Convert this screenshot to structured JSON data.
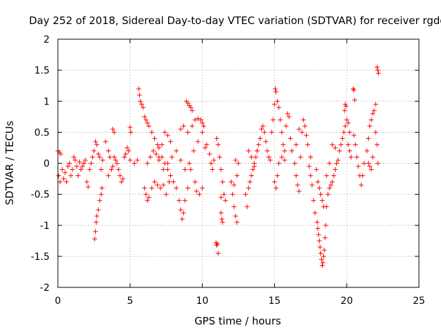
{
  "chart_data": {
    "type": "scatter",
    "title": "Day 252 of 2018, Sidereal Day-to-day VTEC variation (SDTVAR) for receiver rgdg",
    "xlabel": "GPS time / hours",
    "ylabel": "SDTVAR / TECUs",
    "xlim": [
      0,
      25
    ],
    "ylim": [
      -2,
      2
    ],
    "xticks": [
      0,
      5,
      10,
      15,
      20,
      25
    ],
    "yticks": [
      -2,
      -1.5,
      -1,
      -0.5,
      0,
      0.5,
      1,
      1.5,
      2
    ],
    "xtick_labels": [
      "0",
      "5",
      "10",
      "15",
      "20",
      "25"
    ],
    "ytick_labels": [
      "-2",
      "-1.5",
      "-1",
      "-0.5",
      "0",
      "0.5",
      "1",
      "1.5",
      "2"
    ],
    "grid": true,
    "marker": "+",
    "color": "#ff0000",
    "series": [
      {
        "name": "SDTVAR",
        "points": [
          [
            0.0,
            0.2
          ],
          [
            0.1,
            0.18
          ],
          [
            0.2,
            0.15
          ],
          [
            0.05,
            -0.2
          ],
          [
            0.15,
            -0.3
          ],
          [
            0.3,
            -0.1
          ],
          [
            0.4,
            -0.25
          ],
          [
            0.5,
            -0.15
          ],
          [
            0.6,
            -0.3
          ],
          [
            0.7,
            -0.05
          ],
          [
            0.8,
            0.0
          ],
          [
            0.9,
            -0.2
          ],
          [
            1.0,
            -0.1
          ],
          [
            1.1,
            0.1
          ],
          [
            1.2,
            0.05
          ],
          [
            1.3,
            -0.05
          ],
          [
            1.4,
            -0.2
          ],
          [
            1.5,
            0.02
          ],
          [
            1.6,
            -0.1
          ],
          [
            1.7,
            -0.05
          ],
          [
            1.8,
            0.0
          ],
          [
            1.9,
            0.05
          ],
          [
            2.0,
            -0.3
          ],
          [
            2.1,
            -0.38
          ],
          [
            2.2,
            -0.1
          ],
          [
            2.3,
            0.0
          ],
          [
            2.4,
            0.1
          ],
          [
            2.5,
            0.2
          ],
          [
            2.6,
            0.35
          ],
          [
            2.7,
            0.3
          ],
          [
            2.8,
            0.15
          ],
          [
            2.9,
            0.1
          ],
          [
            3.0,
            -0.1
          ],
          [
            3.1,
            0.05
          ],
          [
            2.55,
            -1.22
          ],
          [
            2.6,
            -1.1
          ],
          [
            2.65,
            -0.95
          ],
          [
            2.7,
            -0.85
          ],
          [
            2.8,
            -0.75
          ],
          [
            2.9,
            -0.6
          ],
          [
            3.0,
            -0.5
          ],
          [
            3.05,
            -0.4
          ],
          [
            3.3,
            0.35
          ],
          [
            3.5,
            0.2
          ],
          [
            3.6,
            0.1
          ],
          [
            3.7,
            -0.1
          ],
          [
            3.8,
            -0.05
          ],
          [
            3.9,
            0.1
          ],
          [
            4.0,
            0.05
          ],
          [
            4.1,
            0.0
          ],
          [
            4.2,
            -0.1
          ],
          [
            4.3,
            -0.2
          ],
          [
            4.4,
            -0.3
          ],
          [
            4.5,
            -0.25
          ],
          [
            4.6,
            0.1
          ],
          [
            4.7,
            0.15
          ],
          [
            4.8,
            0.25
          ],
          [
            4.9,
            0.2
          ],
          [
            5.0,
            0.05
          ],
          [
            3.8,
            0.55
          ],
          [
            3.9,
            0.5
          ],
          [
            5.0,
            0.58
          ],
          [
            5.05,
            0.5
          ],
          [
            3.5,
            -0.2
          ],
          [
            5.3,
            0.0
          ],
          [
            5.5,
            0.05
          ],
          [
            5.6,
            1.2
          ],
          [
            5.65,
            1.1
          ],
          [
            5.7,
            1.0
          ],
          [
            5.8,
            0.95
          ],
          [
            5.9,
            0.9
          ],
          [
            6.0,
            0.75
          ],
          [
            6.1,
            0.7
          ],
          [
            6.2,
            0.65
          ],
          [
            6.3,
            0.6
          ],
          [
            6.5,
            0.5
          ],
          [
            6.7,
            0.4
          ],
          [
            6.9,
            0.3
          ],
          [
            7.0,
            0.25
          ],
          [
            7.2,
            0.1
          ],
          [
            7.4,
            0.0
          ],
          [
            7.6,
            -0.1
          ],
          [
            7.8,
            -0.2
          ],
          [
            8.0,
            -0.3
          ],
          [
            8.2,
            -0.4
          ],
          [
            8.4,
            -0.6
          ],
          [
            8.5,
            -0.75
          ],
          [
            8.6,
            -0.9
          ],
          [
            8.7,
            -0.8
          ],
          [
            8.8,
            -0.6
          ],
          [
            9.0,
            -0.4
          ],
          [
            6.0,
            -0.4
          ],
          [
            6.1,
            -0.5
          ],
          [
            6.2,
            -0.6
          ],
          [
            6.3,
            -0.55
          ],
          [
            6.5,
            -0.4
          ],
          [
            6.7,
            -0.3
          ],
          [
            6.9,
            -0.35
          ],
          [
            7.1,
            -0.4
          ],
          [
            7.3,
            -0.35
          ],
          [
            7.5,
            -0.5
          ],
          [
            7.7,
            -0.3
          ],
          [
            6.2,
            0.0
          ],
          [
            6.4,
            0.1
          ],
          [
            6.6,
            0.2
          ],
          [
            6.8,
            0.15
          ],
          [
            7.0,
            0.05
          ],
          [
            7.2,
            0.3
          ],
          [
            7.4,
            0.5
          ],
          [
            7.6,
            0.45
          ],
          [
            7.8,
            0.35
          ],
          [
            7.0,
            0.1
          ],
          [
            7.3,
            -0.1
          ],
          [
            7.6,
            0.0
          ],
          [
            7.9,
            0.1
          ],
          [
            8.2,
            0.2
          ],
          [
            8.5,
            0.05
          ],
          [
            8.8,
            -0.1
          ],
          [
            9.1,
            0.0
          ],
          [
            9.4,
            0.2
          ],
          [
            9.7,
            0.35
          ],
          [
            10.0,
            0.5
          ],
          [
            8.9,
            1.0
          ],
          [
            9.0,
            0.97
          ],
          [
            9.1,
            0.93
          ],
          [
            9.2,
            0.9
          ],
          [
            9.3,
            0.85
          ],
          [
            8.5,
            0.55
          ],
          [
            8.7,
            0.6
          ],
          [
            9.0,
            0.5
          ],
          [
            9.3,
            0.6
          ],
          [
            9.5,
            0.7
          ],
          [
            9.7,
            0.72
          ],
          [
            9.9,
            0.7
          ],
          [
            10.0,
            0.65
          ],
          [
            10.1,
            0.6
          ],
          [
            9.5,
            -0.3
          ],
          [
            9.6,
            -0.45
          ],
          [
            9.8,
            -0.5
          ],
          [
            10.0,
            -0.4
          ],
          [
            9.2,
            -0.1
          ],
          [
            10.2,
            0.25
          ],
          [
            10.3,
            0.3
          ],
          [
            10.5,
            0.15
          ],
          [
            10.6,
            0.0
          ],
          [
            10.7,
            -0.1
          ],
          [
            10.8,
            0.05
          ],
          [
            11.0,
            0.4
          ],
          [
            11.1,
            0.3
          ],
          [
            11.2,
            0.1
          ],
          [
            11.3,
            -0.1
          ],
          [
            11.4,
            -0.3
          ],
          [
            11.5,
            -0.5
          ],
          [
            11.6,
            -0.6
          ],
          [
            10.95,
            -1.28
          ],
          [
            11.0,
            -1.32
          ],
          [
            11.05,
            -1.3
          ],
          [
            11.1,
            -1.45
          ],
          [
            11.3,
            -0.8
          ],
          [
            11.35,
            -0.9
          ],
          [
            11.4,
            -0.95
          ],
          [
            11.3,
            -0.55
          ],
          [
            12.0,
            -0.3
          ],
          [
            12.1,
            -0.5
          ],
          [
            12.2,
            -0.7
          ],
          [
            12.3,
            -0.85
          ],
          [
            12.4,
            -0.95
          ],
          [
            12.2,
            -0.35
          ],
          [
            12.4,
            -0.2
          ],
          [
            12.5,
            0.0
          ],
          [
            12.3,
            0.05
          ],
          [
            13.0,
            -0.5
          ],
          [
            13.1,
            -0.7
          ],
          [
            13.2,
            -0.4
          ],
          [
            13.3,
            -0.3
          ],
          [
            13.4,
            -0.2
          ],
          [
            13.5,
            -0.1
          ],
          [
            13.6,
            0.0
          ],
          [
            13.7,
            0.1
          ],
          [
            13.8,
            0.2
          ],
          [
            13.9,
            0.3
          ],
          [
            14.0,
            0.4
          ],
          [
            14.1,
            0.55
          ],
          [
            14.2,
            0.6
          ],
          [
            14.3,
            0.5
          ],
          [
            14.4,
            0.35
          ],
          [
            14.5,
            0.2
          ],
          [
            14.6,
            0.1
          ],
          [
            14.7,
            0.05
          ],
          [
            13.2,
            0.2
          ],
          [
            13.4,
            0.1
          ],
          [
            13.6,
            -0.05
          ],
          [
            13.8,
            0.2
          ],
          [
            14.8,
            0.5
          ],
          [
            14.9,
            0.7
          ],
          [
            15.0,
            0.95
          ],
          [
            15.05,
            1.2
          ],
          [
            15.1,
            1.15
          ],
          [
            15.2,
            1.0
          ],
          [
            15.3,
            0.9
          ],
          [
            15.4,
            0.7
          ],
          [
            15.5,
            0.5
          ],
          [
            15.6,
            0.3
          ],
          [
            15.7,
            0.2
          ],
          [
            15.0,
            -0.3
          ],
          [
            15.1,
            -0.4
          ],
          [
            15.2,
            -0.2
          ],
          [
            15.3,
            0.0
          ],
          [
            15.5,
            0.1
          ],
          [
            15.7,
            0.05
          ],
          [
            15.8,
            0.6
          ],
          [
            15.9,
            0.8
          ],
          [
            16.0,
            0.75
          ],
          [
            16.1,
            0.4
          ],
          [
            16.2,
            0.2
          ],
          [
            16.4,
            0.0
          ],
          [
            16.5,
            -0.2
          ],
          [
            16.6,
            -0.35
          ],
          [
            16.7,
            -0.45
          ],
          [
            16.8,
            0.1
          ],
          [
            16.9,
            0.5
          ],
          [
            17.0,
            0.7
          ],
          [
            17.1,
            0.6
          ],
          [
            17.2,
            0.45
          ],
          [
            17.3,
            0.3
          ],
          [
            16.5,
            0.3
          ],
          [
            16.7,
            0.55
          ],
          [
            17.4,
            -0.05
          ],
          [
            17.5,
            -0.2
          ],
          [
            17.6,
            -0.35
          ],
          [
            17.7,
            -0.6
          ],
          [
            17.8,
            -0.8
          ],
          [
            17.5,
            0.1
          ],
          [
            17.9,
            -0.1
          ],
          [
            18.0,
            -0.3
          ],
          [
            18.1,
            -0.4
          ],
          [
            18.2,
            -0.5
          ],
          [
            18.3,
            -0.6
          ],
          [
            18.4,
            -0.7
          ],
          [
            17.95,
            -0.95
          ],
          [
            18.0,
            -1.05
          ],
          [
            18.05,
            -1.15
          ],
          [
            18.1,
            -1.25
          ],
          [
            18.15,
            -1.35
          ],
          [
            18.2,
            -1.45
          ],
          [
            18.25,
            -1.55
          ],
          [
            18.3,
            -1.65
          ],
          [
            18.35,
            -1.6
          ],
          [
            18.4,
            -1.5
          ],
          [
            18.45,
            -1.4
          ],
          [
            18.5,
            -1.2
          ],
          [
            18.55,
            -1.0
          ],
          [
            18.6,
            -0.7
          ],
          [
            18.7,
            -0.5
          ],
          [
            18.8,
            -0.4
          ],
          [
            18.9,
            -0.35
          ],
          [
            19.0,
            -0.3
          ],
          [
            19.1,
            -0.2
          ],
          [
            19.2,
            -0.1
          ],
          [
            19.3,
            0.0
          ],
          [
            19.4,
            0.05
          ],
          [
            19.5,
            0.2
          ],
          [
            19.6,
            0.3
          ],
          [
            19.7,
            0.4
          ],
          [
            19.8,
            0.5
          ],
          [
            19.9,
            0.6
          ],
          [
            20.0,
            0.7
          ],
          [
            20.1,
            0.65
          ],
          [
            20.2,
            0.5
          ],
          [
            19.0,
            0.3
          ],
          [
            19.2,
            0.25
          ],
          [
            18.8,
            0.0
          ],
          [
            18.6,
            -0.2
          ],
          [
            19.85,
            0.85
          ],
          [
            19.9,
            0.95
          ],
          [
            19.95,
            0.92
          ],
          [
            20.1,
            0.3
          ],
          [
            20.2,
            0.2
          ],
          [
            20.3,
            0.1
          ],
          [
            20.5,
            0.45
          ],
          [
            20.6,
            0.3
          ],
          [
            20.7,
            0.1
          ],
          [
            20.8,
            -0.05
          ],
          [
            20.9,
            -0.2
          ],
          [
            21.0,
            -0.35
          ],
          [
            21.1,
            -0.2
          ],
          [
            21.2,
            0.0
          ],
          [
            20.45,
            1.2
          ],
          [
            20.5,
            1.18
          ],
          [
            20.55,
            1.02
          ],
          [
            21.4,
            0.2
          ],
          [
            21.5,
            0.4
          ],
          [
            21.6,
            0.6
          ],
          [
            21.7,
            0.7
          ],
          [
            21.8,
            0.8
          ],
          [
            21.9,
            0.85
          ],
          [
            22.0,
            0.95
          ],
          [
            21.5,
            0.0
          ],
          [
            21.6,
            -0.05
          ],
          [
            21.8,
            0.1
          ],
          [
            22.0,
            0.5
          ],
          [
            22.1,
            0.3
          ],
          [
            22.15,
            0.0
          ],
          [
            21.7,
            -0.1
          ],
          [
            22.1,
            1.55
          ],
          [
            22.15,
            1.5
          ],
          [
            22.2,
            1.45
          ]
        ]
      }
    ]
  }
}
